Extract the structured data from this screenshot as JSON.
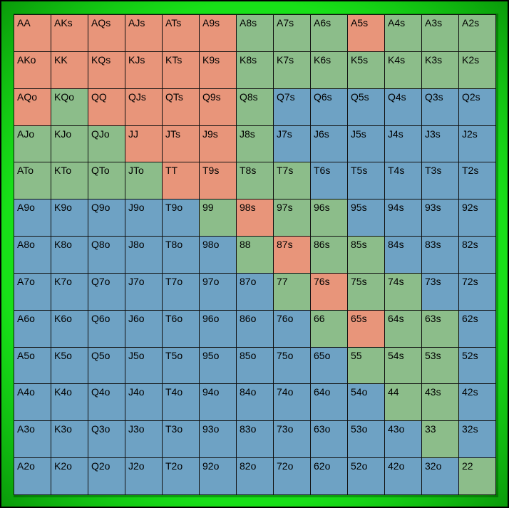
{
  "colors": {
    "raise": "#e8957a",
    "call": "#8cbd8a",
    "fold": "#6ea2c4",
    "frame": "#18e018"
  },
  "grid": [
    [
      [
        "AA",
        "r"
      ],
      [
        "AKs",
        "r"
      ],
      [
        "AQs",
        "r"
      ],
      [
        "AJs",
        "r"
      ],
      [
        "ATs",
        "r"
      ],
      [
        "A9s",
        "r"
      ],
      [
        "A8s",
        "c"
      ],
      [
        "A7s",
        "c"
      ],
      [
        "A6s",
        "c"
      ],
      [
        "A5s",
        "r"
      ],
      [
        "A4s",
        "c"
      ],
      [
        "A3s",
        "c"
      ],
      [
        "A2s",
        "c"
      ]
    ],
    [
      [
        "AKo",
        "r"
      ],
      [
        "KK",
        "r"
      ],
      [
        "KQs",
        "r"
      ],
      [
        "KJs",
        "r"
      ],
      [
        "KTs",
        "r"
      ],
      [
        "K9s",
        "r"
      ],
      [
        "K8s",
        "c"
      ],
      [
        "K7s",
        "c"
      ],
      [
        "K6s",
        "c"
      ],
      [
        "K5s",
        "c"
      ],
      [
        "K4s",
        "c"
      ],
      [
        "K3s",
        "c"
      ],
      [
        "K2s",
        "c"
      ]
    ],
    [
      [
        "AQo",
        "r"
      ],
      [
        "KQo",
        "c"
      ],
      [
        "QQ",
        "r"
      ],
      [
        "QJs",
        "r"
      ],
      [
        "QTs",
        "r"
      ],
      [
        "Q9s",
        "r"
      ],
      [
        "Q8s",
        "c"
      ],
      [
        "Q7s",
        "f"
      ],
      [
        "Q6s",
        "f"
      ],
      [
        "Q5s",
        "f"
      ],
      [
        "Q4s",
        "f"
      ],
      [
        "Q3s",
        "f"
      ],
      [
        "Q2s",
        "f"
      ]
    ],
    [
      [
        "AJo",
        "c"
      ],
      [
        "KJo",
        "c"
      ],
      [
        "QJo",
        "c"
      ],
      [
        "JJ",
        "r"
      ],
      [
        "JTs",
        "r"
      ],
      [
        "J9s",
        "r"
      ],
      [
        "J8s",
        "c"
      ],
      [
        "J7s",
        "f"
      ],
      [
        "J6s",
        "f"
      ],
      [
        "J5s",
        "f"
      ],
      [
        "J4s",
        "f"
      ],
      [
        "J3s",
        "f"
      ],
      [
        "J2s",
        "f"
      ]
    ],
    [
      [
        "ATo",
        "c"
      ],
      [
        "KTo",
        "c"
      ],
      [
        "QTo",
        "c"
      ],
      [
        "JTo",
        "c"
      ],
      [
        "TT",
        "r"
      ],
      [
        "T9s",
        "r"
      ],
      [
        "T8s",
        "c"
      ],
      [
        "T7s",
        "c"
      ],
      [
        "T6s",
        "f"
      ],
      [
        "T5s",
        "f"
      ],
      [
        "T4s",
        "f"
      ],
      [
        "T3s",
        "f"
      ],
      [
        "T2s",
        "f"
      ]
    ],
    [
      [
        "A9o",
        "f"
      ],
      [
        "K9o",
        "f"
      ],
      [
        "Q9o",
        "f"
      ],
      [
        "J9o",
        "f"
      ],
      [
        "T9o",
        "f"
      ],
      [
        "99",
        "c"
      ],
      [
        "98s",
        "r"
      ],
      [
        "97s",
        "c"
      ],
      [
        "96s",
        "c"
      ],
      [
        "95s",
        "f"
      ],
      [
        "94s",
        "f"
      ],
      [
        "93s",
        "f"
      ],
      [
        "92s",
        "f"
      ]
    ],
    [
      [
        "A8o",
        "f"
      ],
      [
        "K8o",
        "f"
      ],
      [
        "Q8o",
        "f"
      ],
      [
        "J8o",
        "f"
      ],
      [
        "T8o",
        "f"
      ],
      [
        "98o",
        "f"
      ],
      [
        "88",
        "c"
      ],
      [
        "87s",
        "r"
      ],
      [
        "86s",
        "c"
      ],
      [
        "85s",
        "c"
      ],
      [
        "84s",
        "f"
      ],
      [
        "83s",
        "f"
      ],
      [
        "82s",
        "f"
      ]
    ],
    [
      [
        "A7o",
        "f"
      ],
      [
        "K7o",
        "f"
      ],
      [
        "Q7o",
        "f"
      ],
      [
        "J7o",
        "f"
      ],
      [
        "T7o",
        "f"
      ],
      [
        "97o",
        "f"
      ],
      [
        "87o",
        "f"
      ],
      [
        "77",
        "c"
      ],
      [
        "76s",
        "r"
      ],
      [
        "75s",
        "c"
      ],
      [
        "74s",
        "c"
      ],
      [
        "73s",
        "f"
      ],
      [
        "72s",
        "f"
      ]
    ],
    [
      [
        "A6o",
        "f"
      ],
      [
        "K6o",
        "f"
      ],
      [
        "Q6o",
        "f"
      ],
      [
        "J6o",
        "f"
      ],
      [
        "T6o",
        "f"
      ],
      [
        "96o",
        "f"
      ],
      [
        "86o",
        "f"
      ],
      [
        "76o",
        "f"
      ],
      [
        "66",
        "c"
      ],
      [
        "65s",
        "r"
      ],
      [
        "64s",
        "c"
      ],
      [
        "63s",
        "c"
      ],
      [
        "62s",
        "f"
      ]
    ],
    [
      [
        "A5o",
        "f"
      ],
      [
        "K5o",
        "f"
      ],
      [
        "Q5o",
        "f"
      ],
      [
        "J5o",
        "f"
      ],
      [
        "T5o",
        "f"
      ],
      [
        "95o",
        "f"
      ],
      [
        "85o",
        "f"
      ],
      [
        "75o",
        "f"
      ],
      [
        "65o",
        "f"
      ],
      [
        "55",
        "c"
      ],
      [
        "54s",
        "c"
      ],
      [
        "53s",
        "c"
      ],
      [
        "52s",
        "f"
      ]
    ],
    [
      [
        "A4o",
        "f"
      ],
      [
        "K4o",
        "f"
      ],
      [
        "Q4o",
        "f"
      ],
      [
        "J4o",
        "f"
      ],
      [
        "T4o",
        "f"
      ],
      [
        "94o",
        "f"
      ],
      [
        "84o",
        "f"
      ],
      [
        "74o",
        "f"
      ],
      [
        "64o",
        "f"
      ],
      [
        "54o",
        "f"
      ],
      [
        "44",
        "c"
      ],
      [
        "43s",
        "c"
      ],
      [
        "42s",
        "f"
      ]
    ],
    [
      [
        "A3o",
        "f"
      ],
      [
        "K3o",
        "f"
      ],
      [
        "Q3o",
        "f"
      ],
      [
        "J3o",
        "f"
      ],
      [
        "T3o",
        "f"
      ],
      [
        "93o",
        "f"
      ],
      [
        "83o",
        "f"
      ],
      [
        "73o",
        "f"
      ],
      [
        "63o",
        "f"
      ],
      [
        "53o",
        "f"
      ],
      [
        "43o",
        "f"
      ],
      [
        "33",
        "c"
      ],
      [
        "32s",
        "f"
      ]
    ],
    [
      [
        "A2o",
        "f"
      ],
      [
        "K2o",
        "f"
      ],
      [
        "Q2o",
        "f"
      ],
      [
        "J2o",
        "f"
      ],
      [
        "T2o",
        "f"
      ],
      [
        "92o",
        "f"
      ],
      [
        "82o",
        "f"
      ],
      [
        "72o",
        "f"
      ],
      [
        "62o",
        "f"
      ],
      [
        "52o",
        "f"
      ],
      [
        "42o",
        "f"
      ],
      [
        "32o",
        "f"
      ],
      [
        "22",
        "c"
      ]
    ]
  ]
}
